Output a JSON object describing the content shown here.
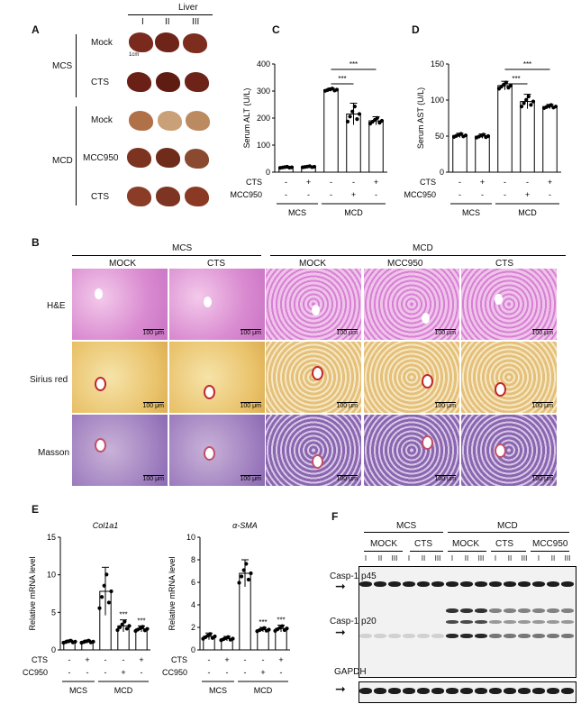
{
  "panelA": {
    "letter": "A",
    "liver_header": "Liver",
    "cols": [
      "I",
      "II",
      "III"
    ],
    "groups": [
      {
        "name": "MCS",
        "rows": [
          "Mock",
          "CTS"
        ]
      },
      {
        "name": "MCD",
        "rows": [
          "Mock",
          "MCC950",
          "CTS"
        ]
      }
    ],
    "scale_label": "1cm"
  },
  "panelC": {
    "letter": "C",
    "chart_data": {
      "type": "bar",
      "ylabel": "Serum ALT (U/L)",
      "ylim": [
        0,
        400
      ],
      "yticks": [
        0,
        100,
        200,
        300,
        400
      ],
      "values": [
        18,
        20,
        305,
        215,
        190
      ],
      "errors": [
        3,
        3,
        6,
        40,
        15
      ],
      "significance": [
        "***",
        "***"
      ],
      "cts": [
        "-",
        "+",
        "-",
        "-",
        "+"
      ],
      "mcc950": [
        "-",
        "-",
        "-",
        "+",
        "-"
      ],
      "row_labels": [
        "CTS",
        "MCC950"
      ],
      "groups": [
        "MCS",
        "MCD"
      ]
    }
  },
  "panelD": {
    "letter": "D",
    "chart_data": {
      "type": "bar",
      "ylabel": "Serum AST (U/L)",
      "ylim": [
        0,
        150
      ],
      "yticks": [
        0,
        50,
        100,
        150
      ],
      "values": [
        51,
        50,
        120,
        98,
        91
      ],
      "errors": [
        3,
        3,
        6,
        10,
        3
      ],
      "significance": [
        "***",
        "***"
      ],
      "cts": [
        "-",
        "+",
        "-",
        "-",
        "+"
      ],
      "mcc950": [
        "-",
        "-",
        "-",
        "+",
        "-"
      ],
      "row_labels": [
        "CTS",
        "MCC950"
      ],
      "groups": [
        "MCS",
        "MCD"
      ]
    }
  },
  "panelB": {
    "letter": "B",
    "groups": [
      "MCS",
      "MCD"
    ],
    "columns": [
      "MOCK",
      "CTS",
      "MOCK",
      "MCC950",
      "CTS"
    ],
    "rows": [
      "H&E",
      "Sirius red",
      "Masson"
    ],
    "scale": "100 μm"
  },
  "panelE": {
    "letter": "E",
    "charts": [
      {
        "title": "Col1a1",
        "ylabel": "Relative mRNA level",
        "ylim": [
          0,
          15
        ],
        "yticks": [
          0,
          5,
          10,
          15
        ],
        "values": [
          1.1,
          1.1,
          7.8,
          3.2,
          2.8
        ],
        "errors": [
          0.2,
          0.2,
          3.2,
          0.8,
          0.4
        ],
        "significance": [
          "",
          "",
          "",
          "***",
          "***"
        ]
      },
      {
        "title": "α-SMA",
        "ylabel": "Relative mRNA level",
        "ylim": [
          0,
          10
        ],
        "yticks": [
          0,
          2,
          4,
          6,
          8,
          10
        ],
        "values": [
          1.2,
          1.0,
          6.8,
          1.8,
          1.9
        ],
        "errors": [
          0.3,
          0.2,
          1.2,
          0.2,
          0.3
        ],
        "significance": [
          "",
          "",
          "",
          "***",
          "***"
        ]
      }
    ],
    "cts": [
      "-",
      "+",
      "-",
      "-",
      "+"
    ],
    "mcc950": [
      "-",
      "-",
      "-",
      "+",
      "-"
    ],
    "row_labels": [
      "CTS",
      "MCC950"
    ],
    "groups": [
      "MCS",
      "MCD"
    ]
  },
  "panelF": {
    "letter": "F",
    "groups": [
      "MCS",
      "MCD"
    ],
    "subgroups": [
      "MOCK",
      "CTS",
      "MOCK",
      "CTS",
      "MCC950"
    ],
    "lanes": [
      "I",
      "II",
      "III"
    ],
    "bands": [
      "Casp-1 p45",
      "Casp-1 p20",
      "GAPDH"
    ]
  }
}
